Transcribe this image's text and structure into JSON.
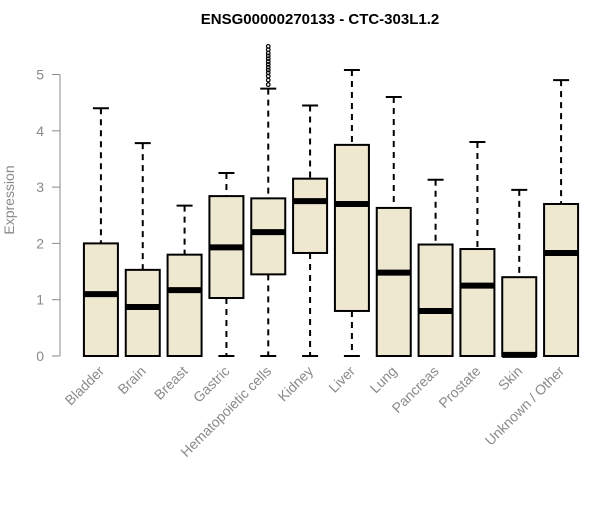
{
  "chart_data": {
    "type": "boxplot",
    "title": "ENSG00000270133 - CTC-303L1.2",
    "xlabel": "",
    "ylabel": "Expression",
    "ylim": [
      0,
      5.5
    ],
    "yticks": [
      0,
      1,
      2,
      3,
      4,
      5
    ],
    "grid": false,
    "legend": "none",
    "box_fill": "#efe8d0",
    "box_stroke": "#000000",
    "axis_color": "#8a8a8a",
    "categories": [
      "Bladder",
      "Brain",
      "Breast",
      "Gastric",
      "Hematopoietic cells",
      "Kidney",
      "Liver",
      "Lung",
      "Pancreas",
      "Prostate",
      "Skin",
      "Unknown / Other"
    ],
    "boxes": [
      {
        "min": 0,
        "q1": 0,
        "median": 1.1,
        "q3": 2.0,
        "max": 4.4,
        "outliers": []
      },
      {
        "min": 0,
        "q1": 0,
        "median": 0.87,
        "q3": 1.53,
        "max": 3.78,
        "outliers": []
      },
      {
        "min": 0,
        "q1": 0,
        "median": 1.17,
        "q3": 1.8,
        "max": 2.67,
        "outliers": []
      },
      {
        "min": 0,
        "q1": 1.03,
        "median": 1.93,
        "q3": 2.84,
        "max": 3.25,
        "outliers": []
      },
      {
        "min": 0,
        "q1": 1.45,
        "median": 2.2,
        "q3": 2.8,
        "max": 4.75,
        "outliers": [
          4.82,
          4.9,
          4.97,
          5.03,
          5.08,
          5.13,
          5.18,
          5.23,
          5.28,
          5.33,
          5.38,
          5.44,
          5.5
        ]
      },
      {
        "min": 0,
        "q1": 1.83,
        "median": 2.75,
        "q3": 3.15,
        "max": 4.45,
        "outliers": []
      },
      {
        "min": 0,
        "q1": 0.8,
        "median": 2.7,
        "q3": 3.75,
        "max": 5.08,
        "outliers": []
      },
      {
        "min": 0,
        "q1": 0,
        "median": 1.48,
        "q3": 2.63,
        "max": 4.6,
        "outliers": []
      },
      {
        "min": 0,
        "q1": 0,
        "median": 0.8,
        "q3": 1.98,
        "max": 3.13,
        "outliers": []
      },
      {
        "min": 0,
        "q1": 0,
        "median": 1.25,
        "q3": 1.9,
        "max": 3.8,
        "outliers": []
      },
      {
        "min": 0,
        "q1": 0,
        "median": 0.02,
        "q3": 1.4,
        "max": 2.95,
        "outliers": []
      },
      {
        "min": 0,
        "q1": 0,
        "median": 1.83,
        "q3": 2.7,
        "max": 4.9,
        "outliers": []
      }
    ]
  }
}
